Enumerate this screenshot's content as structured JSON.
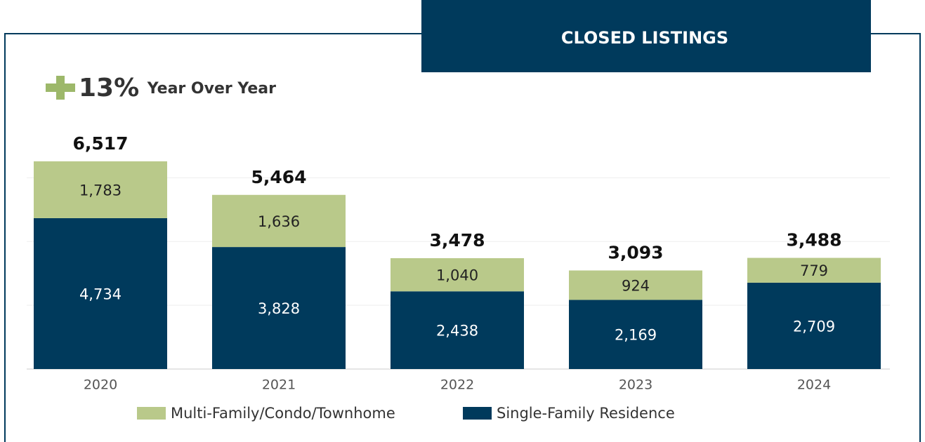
{
  "chart_data": {
    "type": "stacked_bar",
    "title": "CLOSED LISTINGS",
    "change": "13%",
    "change_label": "Year Over Year",
    "categories": [
      "2020",
      "2021",
      "2022",
      "2023",
      "2024"
    ],
    "series": [
      {
        "name": "Single-Family Residence",
        "color": "#003a5c",
        "values": [
          4734,
          3828,
          2438,
          2169,
          2709
        ],
        "value_labels": [
          "4,734",
          "3,828",
          "2,438",
          "2,169",
          "2,709"
        ]
      },
      {
        "name": "Multi-Family/Condo/Townhome",
        "color": "#b9c98a",
        "values": [
          1783,
          1636,
          1040,
          924,
          779
        ],
        "value_labels": [
          "1,783",
          "1,636",
          "1,040",
          "924",
          "779"
        ]
      }
    ],
    "totals": [
      6517,
      5464,
      3478,
      3093,
      3488
    ],
    "total_labels": [
      "6,517",
      "5,464",
      "3,478",
      "3,093",
      "3,488"
    ],
    "ylim": [
      0,
      7000
    ],
    "yticks": [
      0,
      2000,
      4000,
      6000
    ],
    "grid": true
  }
}
